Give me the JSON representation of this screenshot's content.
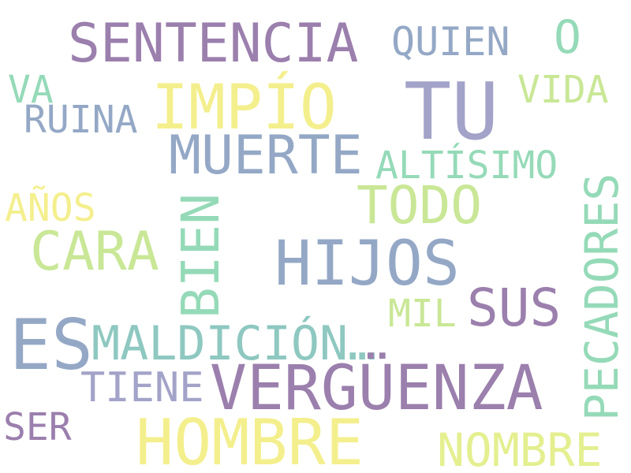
{
  "colors": {
    "purple": "#9b7fad",
    "lavender": "#a3a3c9",
    "slate": "#94a8c6",
    "teal": "#8ec8c0",
    "mint": "#95dab8",
    "lime": "#c9e796",
    "yellow": "#f4ef8d",
    "paleyellow": "#e4ef8f"
  },
  "words": {
    "sentencia": "SENTENCIA",
    "quien": "QUIEN",
    "o": "O",
    "va": "VA",
    "impio": "IMPÍO",
    "tu": "TU",
    "vida": "VIDA",
    "ruina": "RUINA",
    "muerte": "MUERTE",
    "altisimo": "ALTÍSIMO",
    "pecadores": "PECADORES",
    "anos": "AÑOS",
    "todo": "TODO",
    "cara": "CARA",
    "bien": "BIEN",
    "hijos": "HIJOS",
    "mil": "MIL",
    "sus": "SUS",
    "es": "ES",
    "maldicion": "MALDICIÓN…",
    "tiene": "TIENE",
    "verguenza": "VERGÜENZA",
    "ser": "SER",
    "hombre": "HOMBRE",
    "nombre": "NOMBRE"
  }
}
